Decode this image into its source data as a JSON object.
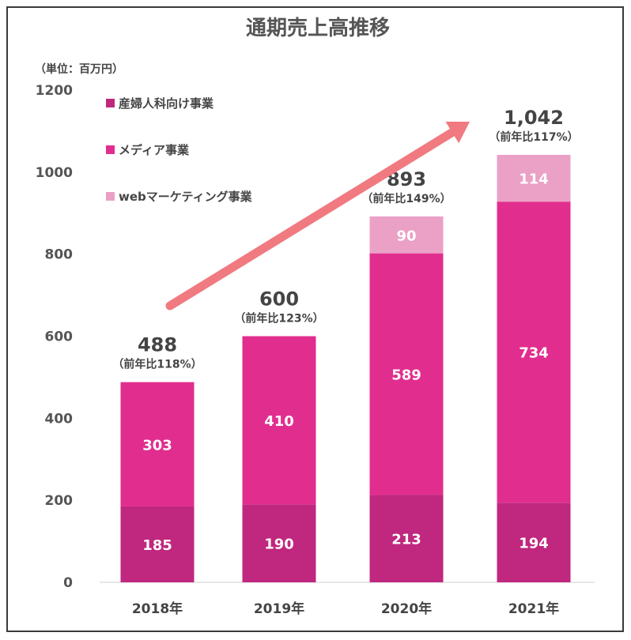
{
  "chart_data": {
    "type": "bar",
    "stacked": true,
    "title": "通期売上高推移",
    "ylabel": "（単位：百万円）",
    "xlabel": "",
    "ylim": [
      0,
      1200
    ],
    "yticks": [
      0,
      200,
      400,
      600,
      800,
      1000,
      1200
    ],
    "categories": [
      "2018年",
      "2019年",
      "2020年",
      "2021年"
    ],
    "series": [
      {
        "name": "産婦人科向け事業",
        "color": "#c0277e",
        "values": [
          185,
          190,
          213,
          194
        ]
      },
      {
        "name": "メディア事業",
        "color": "#e12e8e",
        "values": [
          303,
          410,
          589,
          734
        ]
      },
      {
        "name": "webマーケティング事業",
        "color": "#eba0c6",
        "values": [
          null,
          null,
          90,
          114
        ]
      }
    ],
    "totals": [
      "488",
      "600",
      "893",
      "1,042"
    ],
    "growth": [
      "（前年比118%）",
      "（前年比123%）",
      "（前年比149%）",
      "（前年比117%）"
    ],
    "legend_position": "top-left",
    "trend_arrow_color": "#f07a80"
  }
}
